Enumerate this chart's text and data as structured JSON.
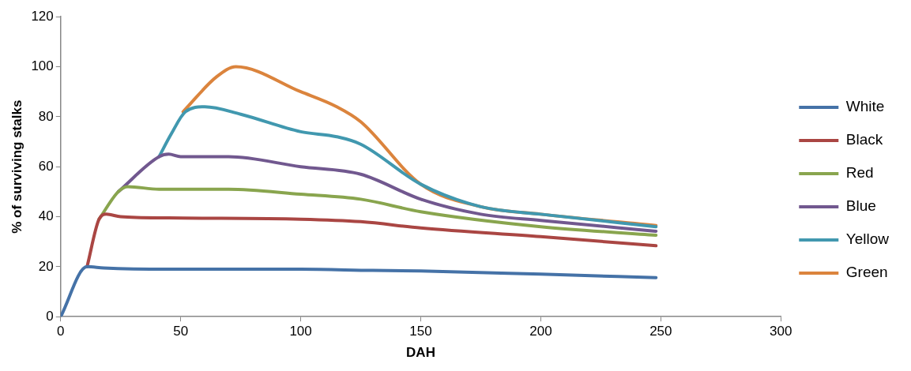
{
  "chart_data": {
    "type": "line",
    "xlabel": "DAH",
    "ylabel": "% of surviving stalks",
    "xlim": [
      0,
      300
    ],
    "xticks": [
      0,
      50,
      100,
      150,
      200,
      250,
      300
    ],
    "ylim": [
      0,
      120
    ],
    "yticks": [
      0,
      20,
      40,
      60,
      80,
      100,
      120
    ],
    "grid": false,
    "legend": "right",
    "marker": "none",
    "line_style": "solid",
    "series": [
      {
        "name": "White",
        "color": "#4572a7",
        "x": [
          0,
          11,
          18,
          45,
          100,
          130,
          150,
          200,
          248
        ],
        "values": [
          0,
          20,
          19.5,
          19,
          19,
          18.5,
          18.3,
          17,
          15.6
        ]
      },
      {
        "name": "Black",
        "color": "#aa4643",
        "x": [
          11,
          16,
          19,
          25,
          45,
          100,
          125,
          150,
          200,
          248
        ],
        "values": [
          20,
          39,
          41,
          40,
          39.5,
          39,
          38,
          35.5,
          32,
          28.4
        ]
      },
      {
        "name": "Red",
        "color": "#89a54e",
        "x": [
          16,
          24,
          28,
          41,
          70,
          100,
          125,
          150,
          200,
          248
        ],
        "values": [
          39,
          50,
          52,
          51,
          51,
          49,
          47,
          42,
          36,
          32.6
        ]
      },
      {
        "name": "Blue",
        "color": "#71588f",
        "x": [
          24,
          41,
          45,
          50,
          70,
          100,
          125,
          150,
          175,
          200,
          248
        ],
        "values": [
          50,
          64,
          65,
          64,
          64,
          60,
          57,
          47,
          41,
          38.5,
          34.2
        ]
      },
      {
        "name": "Yellow",
        "color": "#4198af",
        "x": [
          41,
          46,
          52,
          60,
          75,
          100,
          115,
          125,
          150,
          175,
          200,
          248
        ],
        "values": [
          64,
          73,
          82,
          84,
          81,
          74,
          72,
          69,
          53,
          44,
          41,
          36
        ]
      },
      {
        "name": "Green",
        "color": "#db843d",
        "x": [
          51,
          65,
          73,
          100,
          115,
          125,
          150,
          175,
          200,
          248
        ],
        "values": [
          82,
          96,
          100,
          90,
          84,
          78,
          53,
          44,
          41,
          36.5
        ]
      }
    ]
  }
}
